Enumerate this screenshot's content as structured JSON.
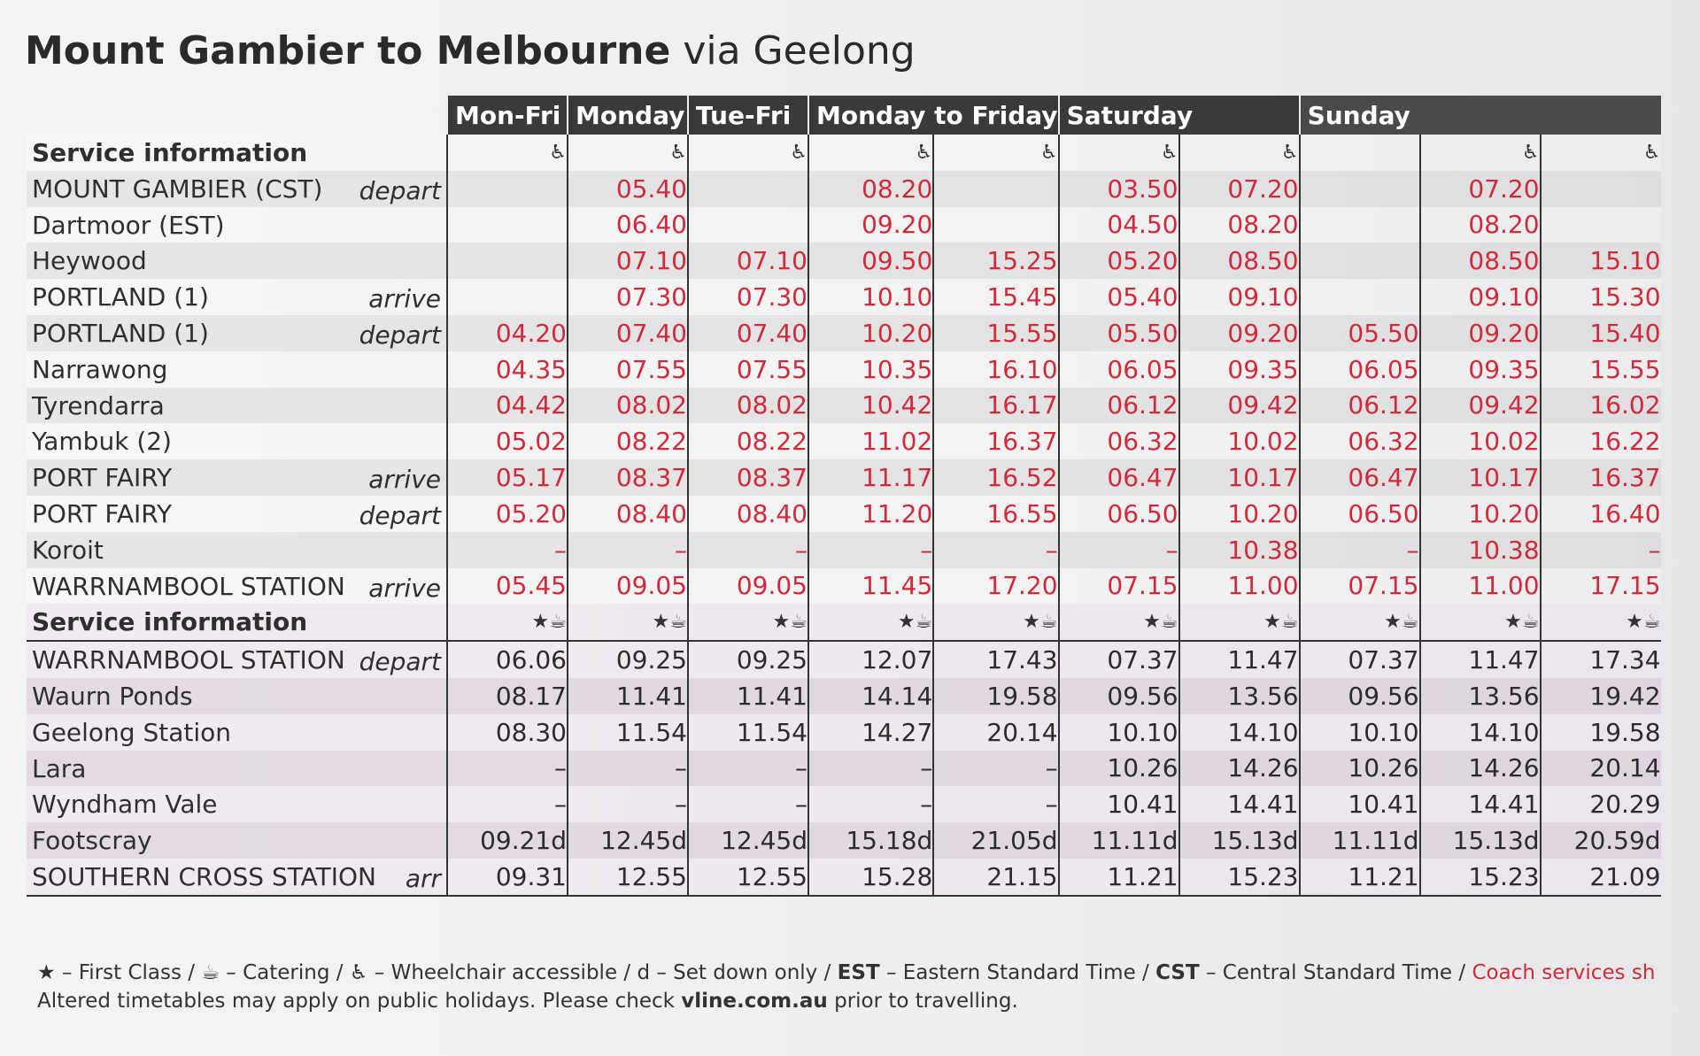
{
  "title": {
    "main": "Mount Gambier to Melbourne",
    "via": "via Geelong"
  },
  "days": [
    {
      "label": "Mon-Fri",
      "span": 1
    },
    {
      "label": "Monday",
      "span": 1
    },
    {
      "label": "Tue-Fri",
      "span": 1
    },
    {
      "label": "Monday to Friday",
      "span": 2
    },
    {
      "label": "Saturday",
      "span": 2
    },
    {
      "label": "Sunday",
      "span": 3
    }
  ],
  "coach_section": {
    "header": "Service information",
    "accessible": [
      true,
      true,
      true,
      true,
      true,
      true,
      true,
      false,
      true,
      true
    ],
    "rows": [
      {
        "stop": "MOUNT GAMBIER (CST)",
        "action": "depart",
        "times": [
          "",
          "05.40",
          "",
          "08.20",
          "",
          "03.50",
          "07.20",
          "",
          "07.20",
          ""
        ]
      },
      {
        "stop": "Dartmoor (EST)",
        "action": "",
        "times": [
          "",
          "06.40",
          "",
          "09.20",
          "",
          "04.50",
          "08.20",
          "",
          "08.20",
          ""
        ]
      },
      {
        "stop": "Heywood",
        "action": "",
        "times": [
          "",
          "07.10",
          "07.10",
          "09.50",
          "15.25",
          "05.20",
          "08.50",
          "",
          "08.50",
          "15.10"
        ]
      },
      {
        "stop": "PORTLAND (1)",
        "action": "arrive",
        "times": [
          "",
          "07.30",
          "07.30",
          "10.10",
          "15.45",
          "05.40",
          "09.10",
          "",
          "09.10",
          "15.30"
        ]
      },
      {
        "stop": "PORTLAND (1)",
        "action": "depart",
        "times": [
          "04.20",
          "07.40",
          "07.40",
          "10.20",
          "15.55",
          "05.50",
          "09.20",
          "05.50",
          "09.20",
          "15.40"
        ]
      },
      {
        "stop": "Narrawong",
        "action": "",
        "times": [
          "04.35",
          "07.55",
          "07.55",
          "10.35",
          "16.10",
          "06.05",
          "09.35",
          "06.05",
          "09.35",
          "15.55"
        ]
      },
      {
        "stop": "Tyrendarra",
        "action": "",
        "times": [
          "04.42",
          "08.02",
          "08.02",
          "10.42",
          "16.17",
          "06.12",
          "09.42",
          "06.12",
          "09.42",
          "16.02"
        ]
      },
      {
        "stop": "Yambuk (2)",
        "action": "",
        "times": [
          "05.02",
          "08.22",
          "08.22",
          "11.02",
          "16.37",
          "06.32",
          "10.02",
          "06.32",
          "10.02",
          "16.22"
        ]
      },
      {
        "stop": "PORT FAIRY",
        "action": "arrive",
        "times": [
          "05.17",
          "08.37",
          "08.37",
          "11.17",
          "16.52",
          "06.47",
          "10.17",
          "06.47",
          "10.17",
          "16.37"
        ]
      },
      {
        "stop": "PORT FAIRY",
        "action": "depart",
        "times": [
          "05.20",
          "08.40",
          "08.40",
          "11.20",
          "16.55",
          "06.50",
          "10.20",
          "06.50",
          "10.20",
          "16.40"
        ]
      },
      {
        "stop": "Koroit",
        "action": "",
        "times": [
          "–",
          "–",
          "–",
          "–",
          "–",
          "–",
          "10.38",
          "–",
          "10.38",
          "–"
        ]
      },
      {
        "stop": "WARRNAMBOOL STATION",
        "action": "arrive",
        "times": [
          "05.45",
          "09.05",
          "09.05",
          "11.45",
          "17.20",
          "07.15",
          "11.00",
          "07.15",
          "11.00",
          "17.15"
        ]
      }
    ]
  },
  "train_section": {
    "header": "Service information",
    "rows": [
      {
        "stop": "WARRNAMBOOL STATION",
        "action": "depart",
        "times": [
          "06.06",
          "09.25",
          "09.25",
          "12.07",
          "17.43",
          "07.37",
          "11.47",
          "07.37",
          "11.47",
          "17.34"
        ]
      },
      {
        "stop": "Waurn Ponds",
        "action": "",
        "times": [
          "08.17",
          "11.41",
          "11.41",
          "14.14",
          "19.58",
          "09.56",
          "13.56",
          "09.56",
          "13.56",
          "19.42"
        ]
      },
      {
        "stop": "Geelong Station",
        "action": "",
        "times": [
          "08.30",
          "11.54",
          "11.54",
          "14.27",
          "20.14",
          "10.10",
          "14.10",
          "10.10",
          "14.10",
          "19.58"
        ]
      },
      {
        "stop": "Lara",
        "action": "",
        "times": [
          "–",
          "–",
          "–",
          "–",
          "–",
          "10.26",
          "14.26",
          "10.26",
          "14.26",
          "20.14"
        ]
      },
      {
        "stop": "Wyndham Vale",
        "action": "",
        "times": [
          "–",
          "–",
          "–",
          "–",
          "–",
          "10.41",
          "14.41",
          "10.41",
          "14.41",
          "20.29"
        ]
      },
      {
        "stop": "Footscray",
        "action": "",
        "times": [
          "09.21d",
          "12.45d",
          "12.45d",
          "15.18d",
          "21.05d",
          "11.11d",
          "15.13d",
          "11.11d",
          "15.13d",
          "20.59d"
        ]
      },
      {
        "stop": "SOUTHERN CROSS STATION",
        "action": "arr",
        "times": [
          "09.31",
          "12.55",
          "12.55",
          "15.28",
          "21.15",
          "11.21",
          "15.23",
          "11.21",
          "15.23",
          "21.09"
        ]
      }
    ]
  },
  "symbols": {
    "wheelchair": "♿",
    "star": "★",
    "cup": "☕"
  },
  "footer": {
    "first_class": "– First Class /",
    "catering": "– Catering /",
    "wheelchair": "– Wheelchair accessible / d – Set down only /",
    "est_abbr": "EST",
    "est_text": "– Eastern Standard Time /",
    "cst_abbr": "CST",
    "cst_text": "– Central Standard Time /",
    "coach": "Coach services sh",
    "line2_a": "Altered timetables may apply on public holidays. Please check",
    "line2_link": "vline.com.au",
    "line2_b": "prior to travelling."
  }
}
